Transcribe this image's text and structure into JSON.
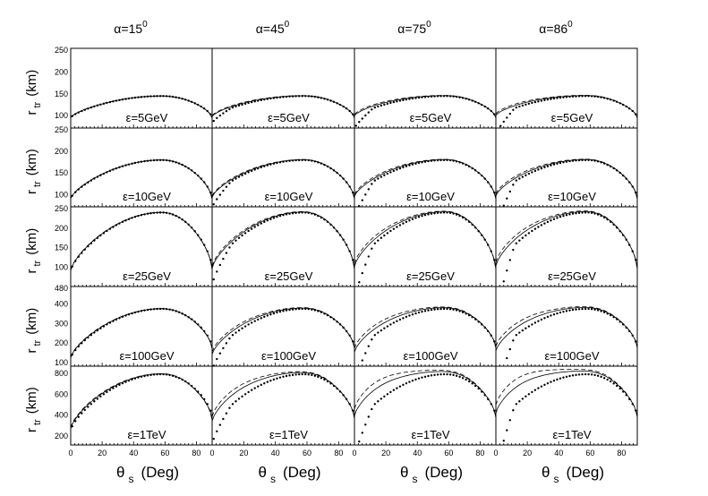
{
  "chart_data": {
    "type": "line",
    "title": "",
    "xlabel": {
      "main": "θ",
      "sub": "s",
      "unit": "(Deg)"
    },
    "ylabel": {
      "main": "r",
      "sub": "tr",
      "unit": "(km)"
    },
    "xlim": [
      0,
      90
    ],
    "xticks": [
      0,
      20,
      40,
      60,
      80
    ],
    "columns": [
      {
        "label": "α=15",
        "sup": "0",
        "alpha_deg": 15
      },
      {
        "label": "α=45",
        "sup": "0",
        "alpha_deg": 45
      },
      {
        "label": "α=75",
        "sup": "0",
        "alpha_deg": 75
      },
      {
        "label": "α=86",
        "sup": "0",
        "alpha_deg": 86
      }
    ],
    "rows": [
      {
        "energy_label": "ε=5GeV",
        "ylim": [
          80,
          250
        ],
        "yticks": [
          100,
          150,
          200,
          250
        ],
        "peak": 145,
        "start": 95,
        "end": 95,
        "solid_spread": 5,
        "dashed_spread": 8
      },
      {
        "energy_label": "ε=10GeV",
        "ylim": [
          80,
          250
        ],
        "yticks": [
          100,
          150,
          200,
          250
        ],
        "peak": 180,
        "start": 90,
        "end": 90,
        "solid_spread": 6,
        "dashed_spread": 10
      },
      {
        "energy_label": "ε=25GeV",
        "ylim": [
          60,
          250
        ],
        "yticks": [
          100,
          150,
          200,
          250
        ],
        "peak": 240,
        "start": 90,
        "end": 95,
        "solid_spread": 12,
        "dashed_spread": 20
      },
      {
        "energy_label": "ε=100GeV",
        "ylim": [
          100,
          480
        ],
        "yticks": [
          100,
          200,
          300,
          400,
          480
        ],
        "peak": 375,
        "start": 120,
        "end": 175,
        "solid_spread": 35,
        "dashed_spread": 55
      },
      {
        "energy_label": "ε=1TeV",
        "ylim": [
          150,
          850
        ],
        "yticks": [
          200,
          400,
          600,
          800
        ],
        "peak": 790,
        "start": 250,
        "end": 375,
        "solid_spread": 150,
        "dashed_spread": 220
      }
    ],
    "series": [
      {
        "name": "dotted",
        "style": "dots"
      },
      {
        "name": "solid",
        "style": "solid"
      },
      {
        "name": "dashed",
        "style": "dashed"
      }
    ]
  }
}
